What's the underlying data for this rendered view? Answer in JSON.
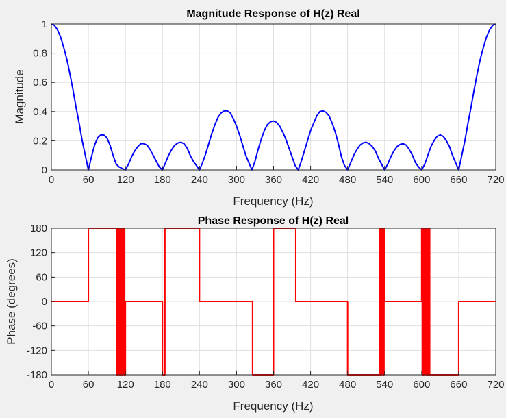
{
  "chart_data": [
    {
      "type": "line",
      "title": "Magnitude Response of H(z) Real",
      "xlabel": "Frequency (Hz)",
      "ylabel": "Magnitude",
      "xlim": [
        0,
        720
      ],
      "ylim": [
        0,
        1
      ],
      "xticks": [
        0,
        60,
        120,
        180,
        240,
        300,
        360,
        420,
        480,
        540,
        600,
        660,
        720
      ],
      "yticks": [
        0,
        0.2,
        0.4,
        0.6,
        0.8,
        1
      ],
      "ytick_labels": [
        "0",
        "0.2",
        "0.4",
        "0.6",
        "0.8",
        "1"
      ],
      "grid": true,
      "series": [
        {
          "color": "#0000ff",
          "x": [
            0,
            5,
            10,
            15,
            20,
            25,
            30,
            35,
            40,
            45,
            50,
            55,
            60,
            65,
            70,
            75,
            80,
            85,
            90,
            95,
            100,
            105,
            110,
            115,
            120,
            125,
            130,
            135,
            140,
            145,
            150,
            155,
            160,
            165,
            170,
            175,
            180,
            185,
            190,
            195,
            200,
            205,
            210,
            215,
            220,
            225,
            230,
            235,
            240,
            245,
            250,
            255,
            260,
            265,
            270,
            275,
            280,
            285,
            290,
            295,
            300,
            305,
            310,
            315,
            320,
            325,
            330,
            335,
            340,
            345,
            350,
            355,
            360,
            365,
            370,
            375,
            380,
            385,
            390,
            395,
            400,
            405,
            410,
            415,
            420,
            425,
            430,
            435,
            440,
            445,
            450,
            455,
            460,
            465,
            470,
            475,
            480,
            485,
            490,
            495,
            500,
            505,
            510,
            515,
            520,
            525,
            530,
            535,
            540,
            545,
            550,
            555,
            560,
            565,
            570,
            575,
            580,
            585,
            590,
            595,
            600,
            605,
            610,
            615,
            620,
            625,
            630,
            635,
            640,
            645,
            650,
            655,
            660,
            665,
            670,
            675,
            680,
            685,
            690,
            695,
            700,
            705,
            710,
            715,
            720
          ],
          "y": [
            1.0,
            0.99,
            0.96,
            0.91,
            0.84,
            0.76,
            0.66,
            0.55,
            0.43,
            0.32,
            0.2,
            0.1,
            0.0,
            0.09,
            0.17,
            0.22,
            0.24,
            0.24,
            0.22,
            0.17,
            0.1,
            0.04,
            0.02,
            0.01,
            0.0,
            0.04,
            0.09,
            0.13,
            0.16,
            0.18,
            0.18,
            0.17,
            0.14,
            0.1,
            0.06,
            0.02,
            0.0,
            0.05,
            0.1,
            0.14,
            0.17,
            0.185,
            0.19,
            0.18,
            0.15,
            0.1,
            0.06,
            0.03,
            0.0,
            0.05,
            0.11,
            0.18,
            0.25,
            0.31,
            0.36,
            0.39,
            0.405,
            0.405,
            0.39,
            0.35,
            0.3,
            0.24,
            0.17,
            0.1,
            0.05,
            0.0,
            0.06,
            0.14,
            0.21,
            0.27,
            0.31,
            0.33,
            0.335,
            0.325,
            0.3,
            0.26,
            0.21,
            0.15,
            0.09,
            0.03,
            0.0,
            0.06,
            0.13,
            0.2,
            0.27,
            0.32,
            0.37,
            0.4,
            0.405,
            0.395,
            0.37,
            0.32,
            0.26,
            0.18,
            0.09,
            0.03,
            0.0,
            0.05,
            0.1,
            0.14,
            0.17,
            0.185,
            0.19,
            0.18,
            0.16,
            0.13,
            0.08,
            0.04,
            0.0,
            0.04,
            0.09,
            0.13,
            0.16,
            0.175,
            0.18,
            0.17,
            0.14,
            0.1,
            0.05,
            0.02,
            0.0,
            0.04,
            0.1,
            0.16,
            0.2,
            0.23,
            0.24,
            0.23,
            0.2,
            0.16,
            0.1,
            0.05,
            0.0,
            0.1,
            0.2,
            0.32,
            0.43,
            0.55,
            0.66,
            0.76,
            0.84,
            0.91,
            0.96,
            0.99,
            1.0
          ]
        }
      ]
    },
    {
      "type": "line",
      "title": "Phase Response of H(z) Real",
      "xlabel": "Frequency (Hz)",
      "ylabel": "Phase (degrees)",
      "xlim": [
        0,
        720
      ],
      "ylim": [
        -180,
        180
      ],
      "xticks": [
        0,
        60,
        120,
        180,
        240,
        300,
        360,
        420,
        480,
        540,
        600,
        660,
        720
      ],
      "yticks": [
        -180,
        -120,
        -60,
        0,
        60,
        120,
        180
      ],
      "ytick_labels": [
        "-180",
        "-120",
        "-60",
        "0",
        "60",
        "120",
        "180"
      ],
      "grid": true,
      "series": [
        {
          "color": "#ff0000",
          "x": [
            0,
            60,
            60,
            106,
            106,
            108,
            108,
            110,
            110,
            112,
            112,
            114,
            114,
            116,
            116,
            118,
            118,
            120,
            120,
            180,
            180,
            184,
            184,
            186,
            186,
            240,
            240,
            326,
            326,
            360,
            360,
            396,
            396,
            480,
            480,
            532,
            532,
            533,
            533,
            535,
            535,
            537,
            537,
            539,
            539,
            540,
            540,
            600,
            600,
            601,
            601,
            603,
            603,
            605,
            605,
            607,
            607,
            609,
            609,
            611,
            611,
            613,
            613,
            615,
            615,
            660,
            660,
            720
          ],
          "y": [
            0,
            0,
            180,
            180,
            -180,
            -180,
            180,
            180,
            -180,
            -180,
            180,
            180,
            -180,
            -180,
            180,
            180,
            -180,
            -180,
            0,
            0,
            -180,
            -180,
            180,
            180,
            180,
            180,
            0,
            0,
            -180,
            -180,
            180,
            180,
            0,
            0,
            -180,
            -180,
            180,
            180,
            -180,
            -180,
            180,
            180,
            -180,
            -180,
            180,
            180,
            0,
            0,
            180,
            180,
            -180,
            -180,
            180,
            180,
            -180,
            -180,
            180,
            180,
            -180,
            -180,
            180,
            180,
            -180,
            -180,
            -180,
            -180,
            0,
            0
          ]
        }
      ]
    }
  ]
}
